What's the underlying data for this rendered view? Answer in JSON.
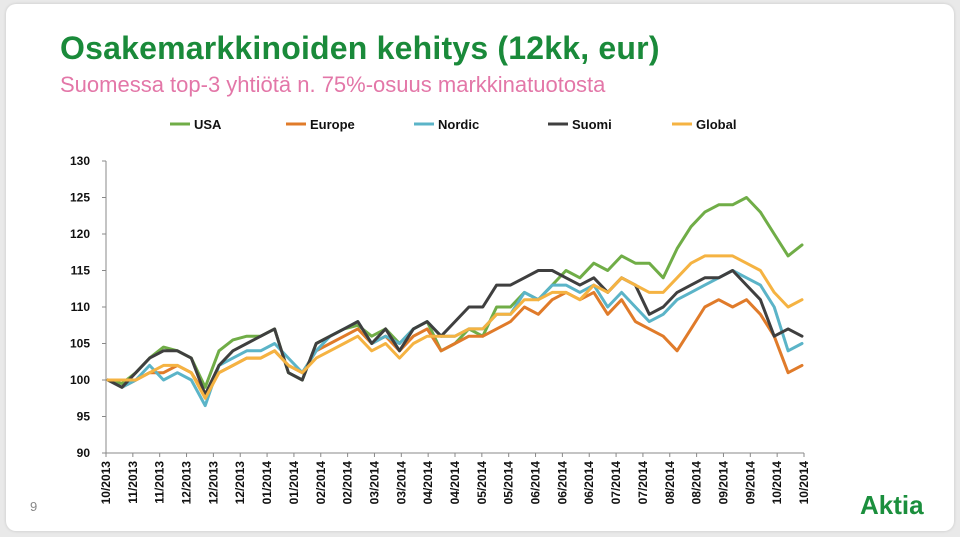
{
  "slide": {
    "title": "Osakemarkkinoiden kehitys (12kk, eur)",
    "subtitle": "Suomessa top-3 yhtiötä n. 75%-osuus markkinatuotosta",
    "page_number": "9",
    "logo": "Aktia"
  },
  "chart_data": {
    "type": "line",
    "title": "",
    "xlabel": "",
    "ylabel": "",
    "ylim": [
      90,
      130
    ],
    "yticks": [
      90,
      95,
      100,
      105,
      110,
      115,
      120,
      125,
      130
    ],
    "xtick_labels": [
      "10/2013",
      "11/2013",
      "11/2013",
      "12/2013",
      "12/2013",
      "12/2013",
      "01/2014",
      "01/2014",
      "02/2014",
      "02/2014",
      "03/2014",
      "03/2014",
      "04/2014",
      "04/2014",
      "05/2014",
      "05/2014",
      "06/2014",
      "06/2014",
      "06/2014",
      "07/2014",
      "07/2014",
      "08/2014",
      "08/2014",
      "09/2014",
      "09/2014",
      "10/2014",
      "10/2014"
    ],
    "legend_position": "top",
    "grid": false,
    "series": [
      {
        "name": "USA",
        "color": "#70ad47",
        "values": [
          100,
          99.5,
          101,
          103,
          104.5,
          104,
          103,
          99,
          104,
          105.5,
          106,
          106,
          107,
          101,
          100,
          105,
          106,
          107,
          107.5,
          106,
          107,
          105,
          107,
          108,
          104,
          105,
          107,
          106,
          110,
          110,
          112,
          111,
          113,
          115,
          114,
          116,
          115,
          117,
          116,
          116,
          114,
          118,
          121,
          123,
          124,
          124,
          125,
          123,
          120,
          117,
          118.5
        ]
      },
      {
        "name": "Europe",
        "color": "#e07b2a",
        "values": [
          100,
          99,
          100,
          101,
          101,
          102,
          101,
          98,
          101,
          102,
          103,
          103,
          104,
          102,
          101,
          104,
          105,
          106,
          107,
          105,
          106,
          104,
          106,
          107,
          104,
          105,
          106,
          106,
          107,
          108,
          110,
          109,
          111,
          112,
          111,
          112,
          109,
          111,
          108,
          107,
          106,
          104,
          107,
          110,
          111,
          110,
          111,
          109,
          106,
          101,
          102
        ]
      },
      {
        "name": "Nordic",
        "color": "#5bb4c8",
        "values": [
          100,
          99,
          100,
          102,
          100,
          101,
          100,
          96.5,
          102,
          103,
          104,
          104,
          105,
          103,
          101,
          104,
          106,
          107,
          108,
          105,
          106,
          105,
          107,
          108,
          106,
          106,
          107,
          107,
          109,
          109,
          112,
          111,
          113,
          113,
          112,
          113,
          110,
          112,
          110,
          108,
          109,
          111,
          112,
          113,
          114,
          115,
          114,
          113,
          110,
          104,
          105
        ]
      },
      {
        "name": "Suomi",
        "color": "#3f3f3f",
        "values": [
          100,
          99,
          101,
          103,
          104,
          104,
          103,
          98,
          102,
          104,
          105,
          106,
          107,
          101,
          100,
          105,
          106,
          107,
          108,
          105,
          107,
          104,
          107,
          108,
          106,
          108,
          110,
          110,
          113,
          113,
          114,
          115,
          115,
          114,
          113,
          114,
          112,
          114,
          113,
          109,
          110,
          112,
          113,
          114,
          114,
          115,
          113,
          111,
          106,
          107,
          106
        ]
      },
      {
        "name": "Global",
        "color": "#f5b342",
        "values": [
          100,
          100,
          100,
          101,
          102,
          102,
          101,
          97.5,
          101,
          102,
          103,
          103,
          104,
          102,
          101,
          103,
          104,
          105,
          106,
          104,
          105,
          103,
          105,
          106,
          106,
          106,
          107,
          107,
          109,
          109,
          111,
          111,
          112,
          112,
          111,
          113,
          112,
          114,
          113,
          112,
          112,
          114,
          116,
          117,
          117,
          117,
          116,
          115,
          112,
          110,
          111
        ]
      }
    ]
  }
}
